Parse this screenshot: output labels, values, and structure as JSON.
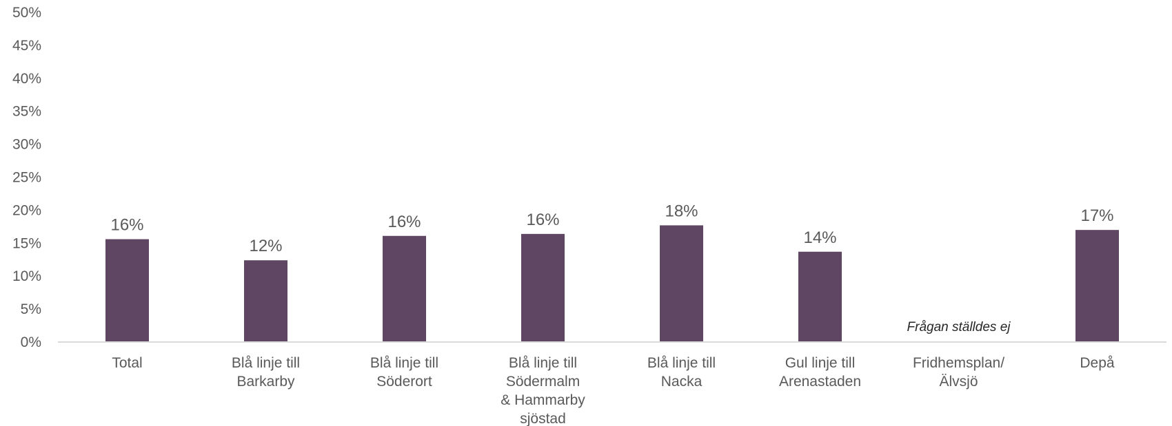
{
  "chart_data": {
    "type": "bar",
    "categories": [
      [
        "Total"
      ],
      [
        "Blå linje till",
        "Barkarby"
      ],
      [
        "Blå linje till",
        "Söderort"
      ],
      [
        "Blå linje till",
        "Södermalm",
        "& Hammarby",
        "sjöstad"
      ],
      [
        "Blå linje till",
        "Nacka"
      ],
      [
        "Gul linje till",
        "Arenastaden"
      ],
      [
        "Fridhemsplan/",
        "Älvsjö"
      ],
      [
        "Depå"
      ]
    ],
    "values": [
      15.6,
      12.4,
      16.1,
      16.4,
      17.7,
      13.7,
      null,
      17.0
    ],
    "data_labels": [
      "16%",
      "12%",
      "16%",
      "16%",
      "18%",
      "14%",
      "",
      "17%"
    ],
    "annotations": [
      {
        "category_index": 6,
        "text": "Frågan ställdes ej"
      }
    ],
    "ylim": [
      0,
      50
    ],
    "y_ticks": [
      0,
      5,
      10,
      15,
      20,
      25,
      30,
      35,
      40,
      45,
      50
    ],
    "y_tick_labels": [
      "0%",
      "5%",
      "10%",
      "15%",
      "20%",
      "25%",
      "30%",
      "35%",
      "40%",
      "45%",
      "50%"
    ],
    "title": "",
    "xlabel": "",
    "ylabel": "",
    "grid": false,
    "bar_color": "#5f4662",
    "axis_color": "#d9d9d9"
  }
}
